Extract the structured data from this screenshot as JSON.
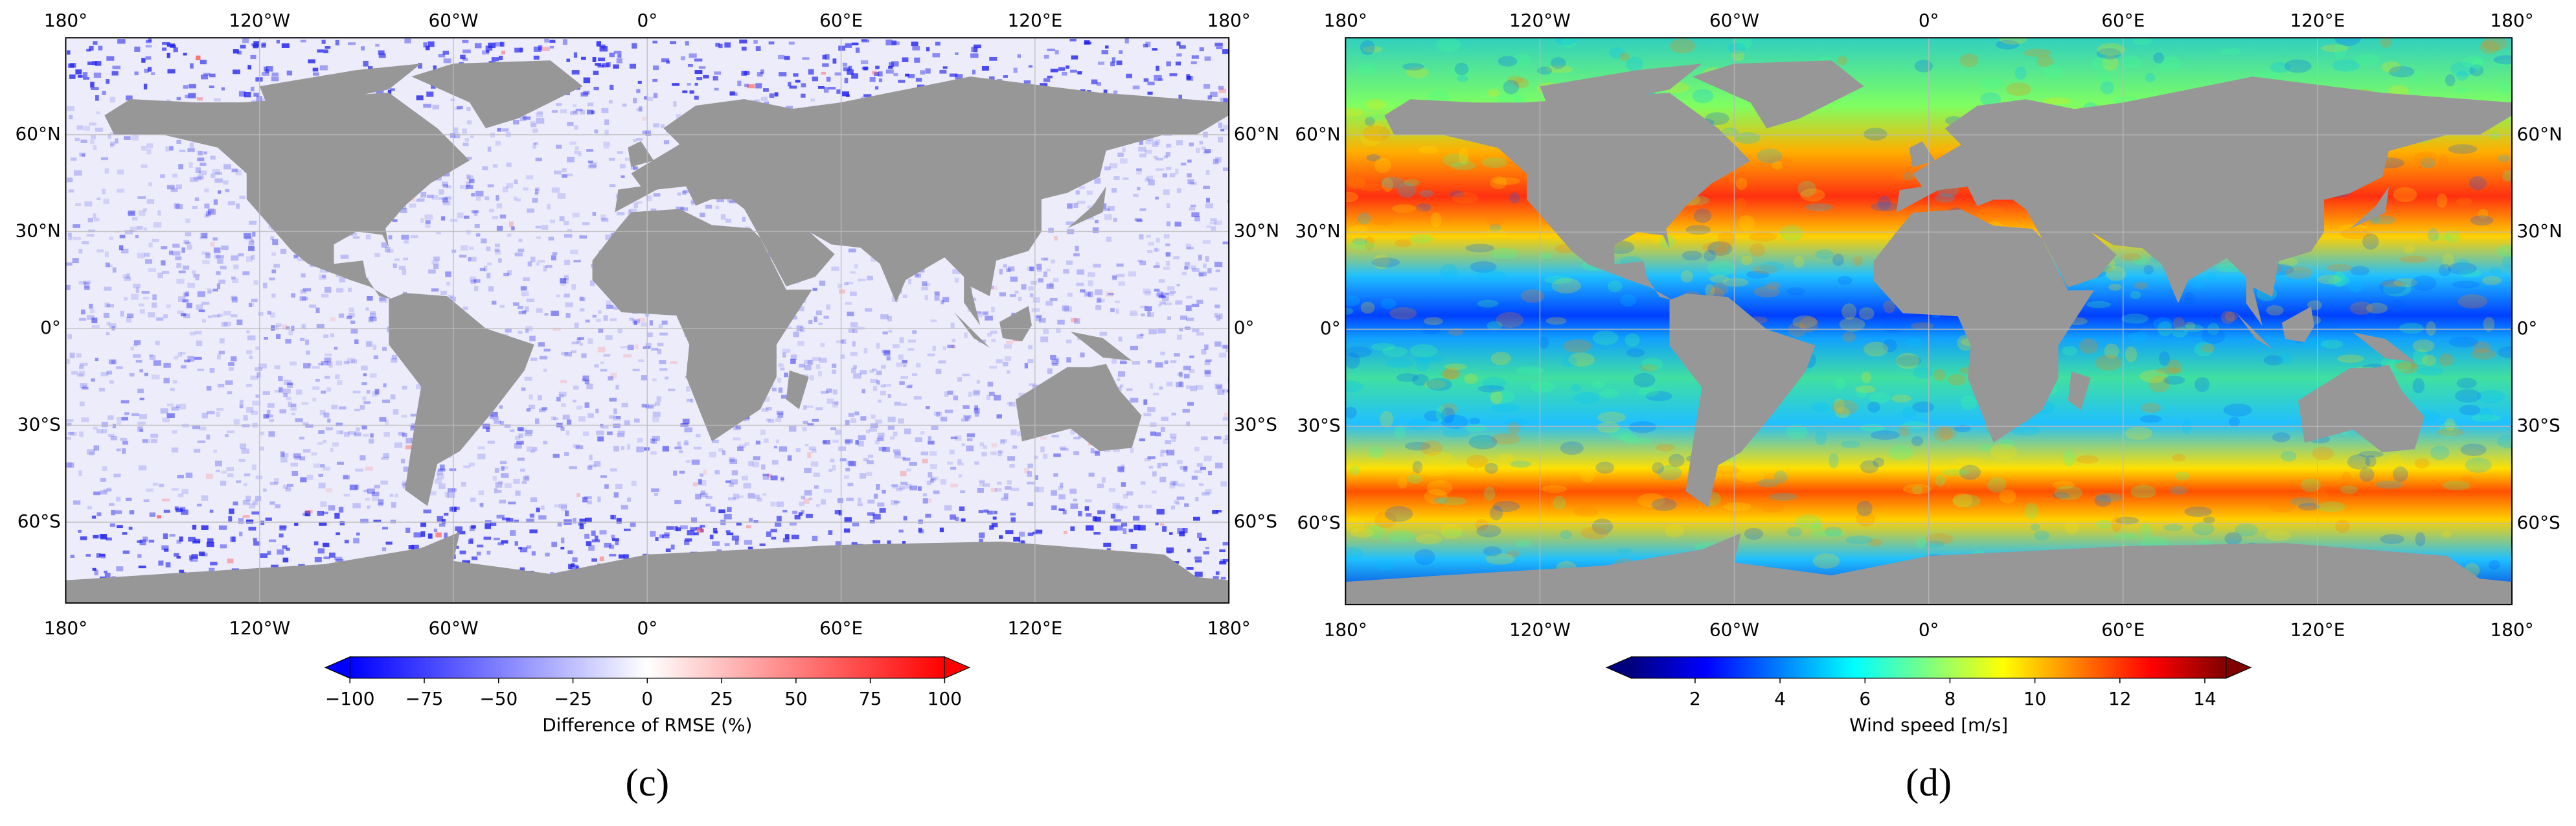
{
  "panels": [
    {
      "label": "(c)",
      "lon_ticks": [
        {
          "value": -180,
          "label": "180°"
        },
        {
          "value": -120,
          "label": "120°W"
        },
        {
          "value": -60,
          "label": "60°W"
        },
        {
          "value": 0,
          "label": "0°"
        },
        {
          "value": 60,
          "label": "60°E"
        },
        {
          "value": 120,
          "label": "120°E"
        },
        {
          "value": 180,
          "label": "180°"
        }
      ],
      "lat_ticks": [
        {
          "value": 60,
          "label": "60°N"
        },
        {
          "value": 30,
          "label": "30°N"
        },
        {
          "value": 0,
          "label": "0°"
        },
        {
          "value": -30,
          "label": "30°S"
        },
        {
          "value": -60,
          "label": "60°S"
        }
      ],
      "colorbar": {
        "label": "Difference of RMSE (%)",
        "clim": [
          -100,
          100
        ],
        "ticks": [
          {
            "value": -100,
            "label": "−100"
          },
          {
            "value": -75,
            "label": "−75"
          },
          {
            "value": -50,
            "label": "−50"
          },
          {
            "value": -25,
            "label": "−25"
          },
          0,
          25,
          50,
          75,
          100
        ],
        "colors": [
          "#0000ff",
          "#ffffff",
          "#ff0000"
        ]
      }
    },
    {
      "label": "(d)",
      "lon_ticks": [
        {
          "value": -180,
          "label": "180°"
        },
        {
          "value": -120,
          "label": "120°W"
        },
        {
          "value": -60,
          "label": "60°W"
        },
        {
          "value": 0,
          "label": "0°"
        },
        {
          "value": 60,
          "label": "60°E"
        },
        {
          "value": 120,
          "label": "120°E"
        },
        {
          "value": 180,
          "label": "180°"
        }
      ],
      "lat_ticks": [
        {
          "value": 60,
          "label": "60°N"
        },
        {
          "value": 30,
          "label": "30°N"
        },
        {
          "value": 0,
          "label": "0°"
        },
        {
          "value": -30,
          "label": "30°S"
        },
        {
          "value": -60,
          "label": "60°S"
        }
      ],
      "colorbar": {
        "label": "Wind speed [m/s]",
        "clim": [
          0.5,
          14.5
        ],
        "ticks": [
          2,
          4,
          6,
          8,
          10,
          12,
          14
        ],
        "colors": [
          "#00007f",
          "#0000ff",
          "#007fff",
          "#00ffff",
          "#7fff7f",
          "#ffff00",
          "#ff7f00",
          "#ff0000",
          "#7f0000"
        ]
      }
    }
  ]
}
